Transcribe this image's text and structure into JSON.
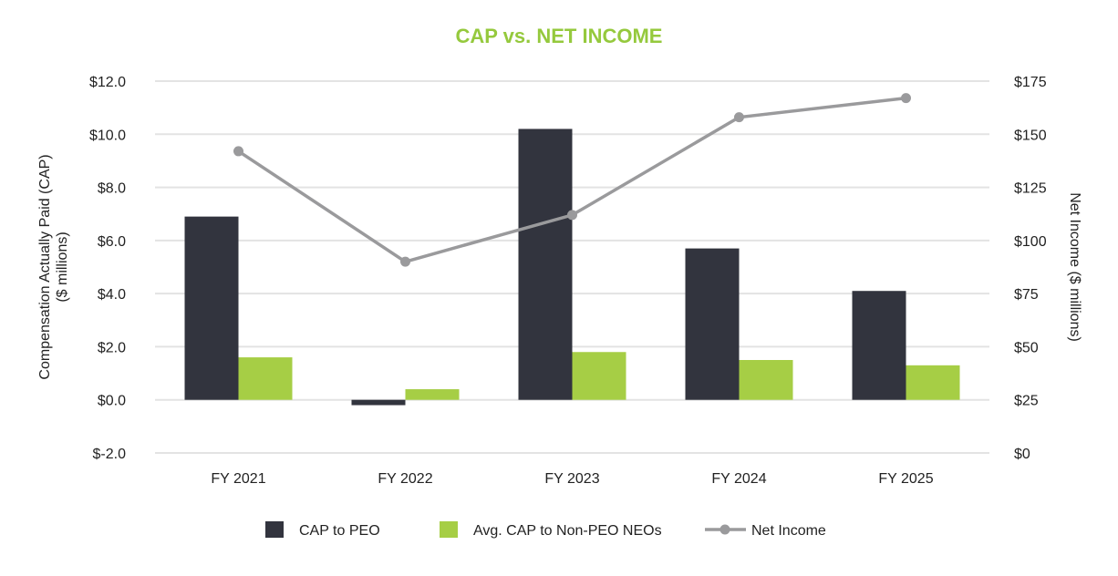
{
  "chart_data": {
    "type": "bar",
    "title": "CAP vs. NET INCOME",
    "categories": [
      "FY 2021",
      "FY 2022",
      "FY 2023",
      "FY 2024",
      "FY 2025"
    ],
    "ylabel": [
      "Compensation Actually Paid (CAP)",
      "($ millions)"
    ],
    "y2label": "Net Income ($ millions)",
    "ylim": [
      -2,
      12
    ],
    "y2lim": [
      0,
      175
    ],
    "yticks": [
      "$-2.0",
      "$0.0",
      "$2.0",
      "$4.0",
      "$6.0",
      "$8.0",
      "$10.0",
      "$12.0"
    ],
    "y2ticks": [
      "$0",
      "$25",
      "$50",
      "$75",
      "$100",
      "$125",
      "$150",
      "$175"
    ],
    "grid": true,
    "legend_position": "bottom",
    "series": [
      {
        "name": "CAP to PEO",
        "type": "bar",
        "axis": "left",
        "color": "#32343e",
        "values": [
          6.9,
          -0.2,
          10.2,
          5.7,
          4.1
        ]
      },
      {
        "name": "Avg. CAP to Non-PEO NEOs",
        "type": "bar",
        "axis": "left",
        "color": "#a6ce45",
        "values": [
          1.6,
          0.4,
          1.8,
          1.5,
          1.3
        ]
      },
      {
        "name": "Net Income",
        "type": "line",
        "axis": "right",
        "color": "#9a9a9c",
        "values": [
          142,
          90,
          112,
          158,
          167
        ]
      }
    ],
    "title_color": "#95c93d"
  }
}
